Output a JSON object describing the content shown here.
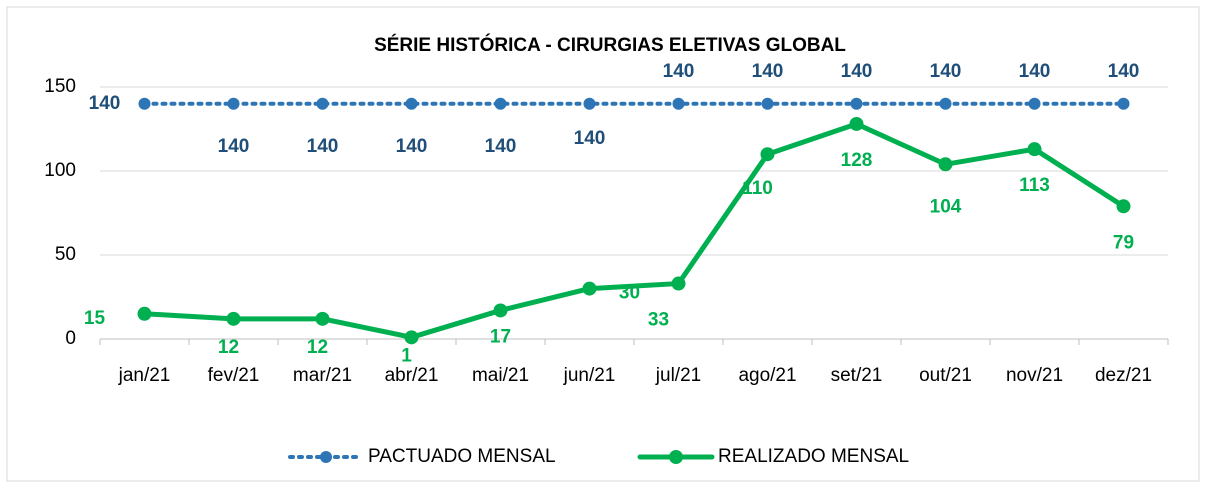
{
  "chart_data": {
    "type": "line",
    "title": "SÉRIE HISTÓRICA - CIRURGIAS ELETIVAS GLOBAL",
    "categories": [
      "jan/21",
      "fev/21",
      "mar/21",
      "abr/21",
      "mai/21",
      "jun/21",
      "jul/21",
      "ago/21",
      "set/21",
      "out/21",
      "nov/21",
      "dez/21"
    ],
    "series": [
      {
        "name": "PACTUADO MENSAL",
        "color": "#2e75b6",
        "label_color": "#1f4e79",
        "values": [
          140,
          140,
          140,
          140,
          140,
          140,
          140,
          140,
          140,
          140,
          140,
          140
        ]
      },
      {
        "name": "REALIZADO MENSAL",
        "color": "#00b050",
        "label_color": "#00b050",
        "values": [
          15,
          12,
          12,
          1,
          17,
          30,
          33,
          110,
          128,
          104,
          113,
          79
        ]
      }
    ],
    "ylim": [
      0,
      150
    ],
    "yticks": [
      0,
      50,
      100,
      150
    ],
    "grid": true
  }
}
